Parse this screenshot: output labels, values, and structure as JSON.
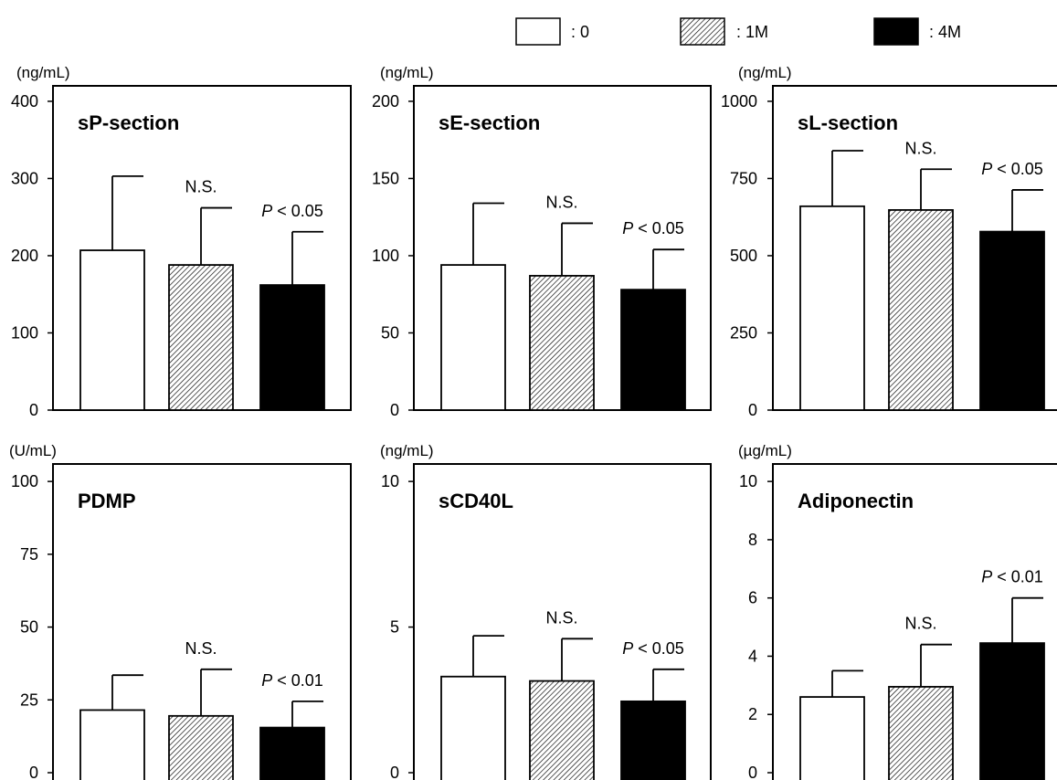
{
  "legend": [
    {
      "key": "0",
      "label": ": 0",
      "fill": "white"
    },
    {
      "key": "1M",
      "label": ": 1M",
      "fill": "hatch"
    },
    {
      "key": "4M",
      "label": ": 4M",
      "fill": "black"
    }
  ],
  "colors": {
    "axis": "#000000",
    "bar_black": "#000000",
    "bar_white": "#ffffff",
    "hatch": "#000000"
  },
  "chart_data": [
    {
      "type": "bar",
      "title": "sP-section",
      "unit": "(ng/mL)",
      "categories": [
        "0",
        "1M",
        "4M"
      ],
      "values": [
        207,
        188,
        162
      ],
      "errors": [
        96,
        74,
        69
      ],
      "ylim": [
        0,
        420
      ],
      "yticks": [
        0,
        100,
        200,
        300,
        400
      ],
      "annotations": [
        {
          "index": 1,
          "text": "N.S."
        },
        {
          "index": 2,
          "p": "P",
          "text": " < 0.05"
        }
      ]
    },
    {
      "type": "bar",
      "title": "sE-section",
      "unit": "(ng/mL)",
      "categories": [
        "0",
        "1M",
        "4M"
      ],
      "values": [
        94,
        87,
        78
      ],
      "errors": [
        40,
        34,
        26
      ],
      "ylim": [
        0,
        210
      ],
      "yticks": [
        0,
        50,
        100,
        150,
        200
      ],
      "annotations": [
        {
          "index": 1,
          "text": "N.S."
        },
        {
          "index": 2,
          "p": "P",
          "text": " < 0.05"
        }
      ]
    },
    {
      "type": "bar",
      "title": "sL-section",
      "unit": "(ng/mL)",
      "categories": [
        "0",
        "1M",
        "4M"
      ],
      "values": [
        660,
        648,
        578
      ],
      "errors": [
        180,
        132,
        135
      ],
      "ylim": [
        0,
        1050
      ],
      "yticks": [
        0,
        250,
        500,
        750,
        1000
      ],
      "annotations": [
        {
          "index": 1,
          "text": "N.S."
        },
        {
          "index": 2,
          "p": "P",
          "text": " < 0.05"
        }
      ]
    },
    {
      "type": "bar",
      "title": "PDMP",
      "unit": "(U/mL)",
      "categories": [
        "0",
        "1M",
        "4M"
      ],
      "values": [
        21.5,
        19.5,
        15.5
      ],
      "errors": [
        12,
        16,
        9
      ],
      "ylim": [
        0,
        106
      ],
      "yticks": [
        0,
        25,
        50,
        75,
        100
      ],
      "annotations": [
        {
          "index": 1,
          "text": "N.S."
        },
        {
          "index": 2,
          "p": "P",
          "text": " < 0.01"
        }
      ]
    },
    {
      "type": "bar",
      "title": "sCD40L",
      "unit": "(ng/mL)",
      "categories": [
        "0",
        "1M",
        "4M"
      ],
      "values": [
        3.3,
        3.15,
        2.45
      ],
      "errors": [
        1.4,
        1.45,
        1.1
      ],
      "ylim": [
        0,
        10.6
      ],
      "yticks": [
        0,
        5,
        10
      ],
      "annotations": [
        {
          "index": 1,
          "text": "N.S."
        },
        {
          "index": 2,
          "p": "P",
          "text": " < 0.05"
        }
      ]
    },
    {
      "type": "bar",
      "title": "Adiponectin",
      "unit": "(µg/mL)",
      "categories": [
        "0",
        "1M",
        "4M"
      ],
      "values": [
        2.6,
        2.95,
        4.45
      ],
      "errors": [
        0.9,
        1.45,
        1.55
      ],
      "ylim": [
        0,
        10.6
      ],
      "yticks": [
        0,
        2,
        4,
        6,
        8,
        10
      ],
      "annotations": [
        {
          "index": 1,
          "text": "N.S."
        },
        {
          "index": 2,
          "p": "P",
          "text": " < 0.01"
        }
      ]
    }
  ]
}
